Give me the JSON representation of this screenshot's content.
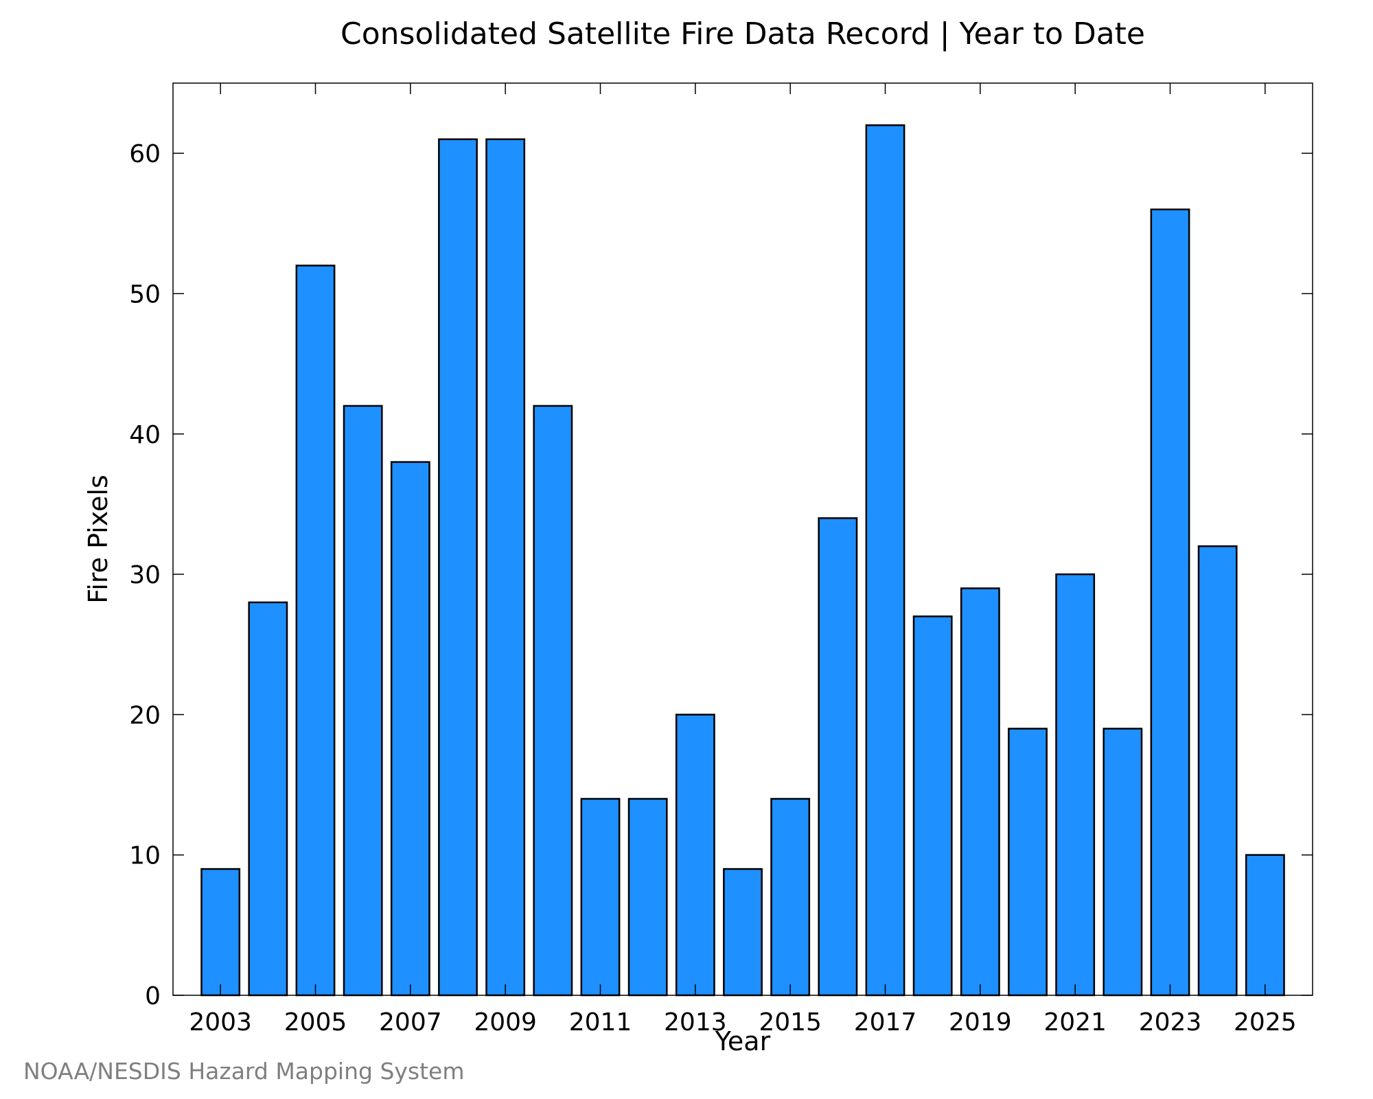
{
  "chart_data": {
    "type": "bar",
    "title": "Consolidated Satellite Fire Data Record | Year to Date",
    "xlabel": "Year",
    "ylabel": "Fire Pixels",
    "categories": [
      "2003",
      "2004",
      "2005",
      "2006",
      "2007",
      "2008",
      "2009",
      "2010",
      "2011",
      "2012",
      "2013",
      "2014",
      "2015",
      "2016",
      "2017",
      "2018",
      "2019",
      "2020",
      "2021",
      "2022",
      "2023",
      "2024",
      "2025"
    ],
    "x_tick_labels": [
      "2003",
      "2005",
      "2007",
      "2009",
      "2011",
      "2013",
      "2015",
      "2017",
      "2019",
      "2021",
      "2023",
      "2025"
    ],
    "values": [
      9,
      28,
      52,
      42,
      38,
      61,
      61,
      42,
      14,
      14,
      20,
      9,
      14,
      34,
      62,
      27,
      29,
      19,
      30,
      19,
      56,
      32,
      10
    ],
    "ylim": [
      0,
      65
    ],
    "y_ticks": [
      0,
      10,
      20,
      30,
      40,
      50,
      60
    ],
    "grid": false,
    "bar_color": "#1e90ff",
    "edge_color": "#000000"
  },
  "footer": {
    "credit": "NOAA/NESDIS Hazard Mapping System"
  }
}
